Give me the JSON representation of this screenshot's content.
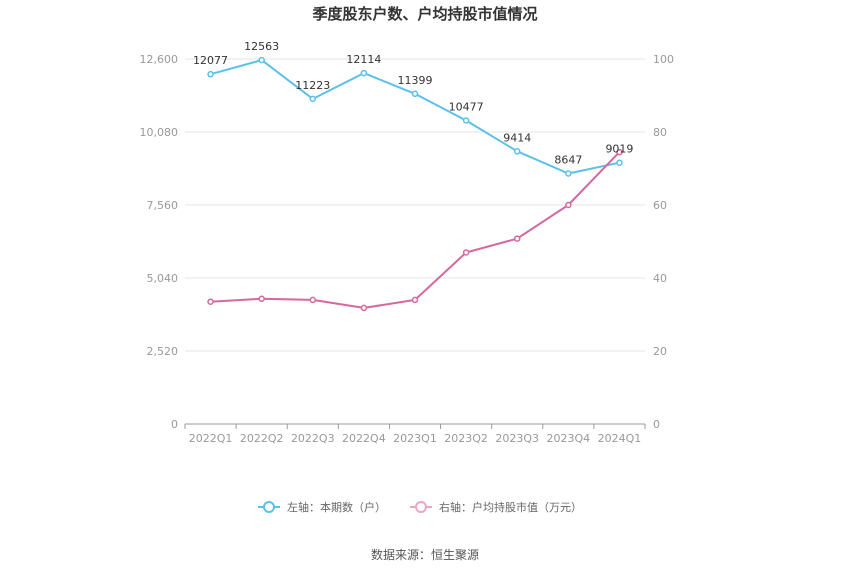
{
  "chart_data": {
    "type": "line",
    "title": "季度股东户数、户均持股市值情况",
    "categories": [
      "2022Q1",
      "2022Q2",
      "2022Q3",
      "2022Q4",
      "2023Q1",
      "2023Q2",
      "2023Q3",
      "2023Q4",
      "2024Q1"
    ],
    "series": [
      {
        "name": "左轴：本期数（户）",
        "axis": "left",
        "color": "#5bc0eb",
        "values": [
          12077,
          12563,
          11223,
          12114,
          11399,
          10477,
          9414,
          8647,
          9019
        ],
        "labels": [
          "12077",
          "12563",
          "11223",
          "12114",
          "11399",
          "10477",
          "9414",
          "8647",
          "9019"
        ]
      },
      {
        "name": "右轴：户均持股市值（万元）",
        "axis": "right",
        "color": "#d4689f",
        "values": [
          33.5,
          34.3,
          34.0,
          31.8,
          34.0,
          47.0,
          50.8,
          60.0,
          74.5
        ]
      }
    ],
    "left_axis": {
      "min": 0,
      "max": 12600,
      "ticks": [
        0,
        2520,
        5040,
        7560,
        10080,
        12600
      ],
      "tick_labels": [
        "0",
        "2,520",
        "5,040",
        "7,560",
        "10,080",
        "12,600"
      ]
    },
    "right_axis": {
      "min": 0,
      "max": 100,
      "ticks": [
        0,
        20,
        40,
        60,
        80,
        100
      ],
      "tick_labels": [
        "0",
        "20",
        "40",
        "60",
        "80",
        "100"
      ]
    },
    "grid": true,
    "legend_position": "bottom",
    "source": "数据来源：恒生聚源"
  }
}
